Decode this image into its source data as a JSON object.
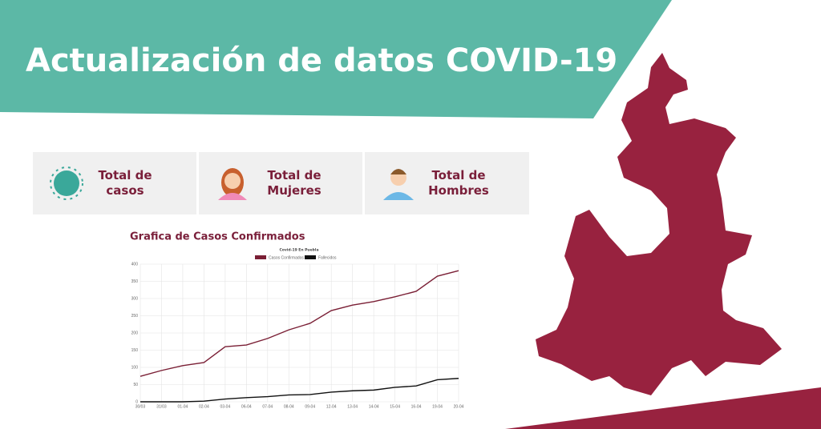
{
  "header": {
    "title": "Actualización de datos COVID-19"
  },
  "cards": [
    {
      "label": "Total de casos"
    },
    {
      "label": "Total de Mujeres"
    },
    {
      "label": "Total de Hombres"
    }
  ],
  "chart_data": {
    "type": "line",
    "title": "Grafica de Casos Confirmados",
    "subtitle": "Covid-19 En Puebla",
    "categories": [
      "30/03",
      "31/03",
      "01-04",
      "02-04",
      "03-04",
      "06-04",
      "07-04",
      "08-04",
      "09-04",
      "12-04",
      "13-04",
      "14-04",
      "15-04",
      "16-04",
      "19-04",
      "20-04"
    ],
    "series": [
      {
        "name": "Casos Confirmados",
        "color": "#7a1f35",
        "values": [
          74,
          91,
          105,
          114,
          160,
          165,
          184,
          209,
          228,
          265,
          281,
          291,
          305,
          321,
          365,
          381
        ]
      },
      {
        "name": "Fallecidos",
        "color": "#111111",
        "values": [
          0,
          0,
          0,
          2,
          8,
          12,
          15,
          20,
          21,
          28,
          32,
          34,
          42,
          46,
          64,
          68
        ]
      }
    ],
    "ylim": [
      0,
      400
    ],
    "yticks": [
      0,
      50,
      100,
      150,
      200,
      250,
      300,
      350,
      400
    ],
    "grid": true,
    "legend": "top"
  }
}
